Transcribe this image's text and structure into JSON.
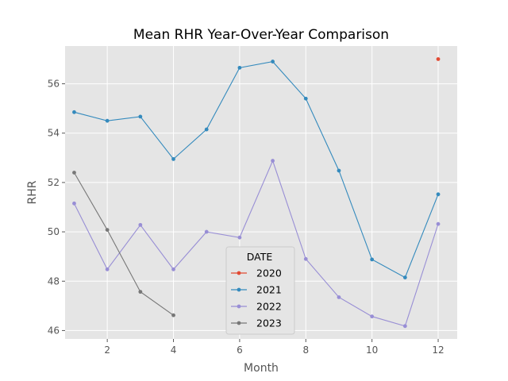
{
  "chart_data": {
    "type": "line",
    "title": "Mean RHR Year-Over-Year Comparison",
    "xlabel": "Month",
    "ylabel": "RHR",
    "xlim": [
      0.725,
      12.575
    ],
    "ylim": [
      45.66,
      57.53
    ],
    "x_ticks": [
      2,
      4,
      6,
      8,
      10,
      12
    ],
    "y_ticks": [
      46,
      48,
      50,
      52,
      54,
      56
    ],
    "grid": true,
    "style": "ggplot",
    "legend": {
      "title": "DATE",
      "placement": "lower center"
    },
    "series": [
      {
        "name": "2020",
        "color": "#E24A33",
        "x": [
          12
        ],
        "y": [
          57.0
        ]
      },
      {
        "name": "2021",
        "color": "#348ABD",
        "x": [
          1,
          2,
          3,
          4,
          5,
          6,
          7,
          8,
          9,
          10,
          11,
          12
        ],
        "y": [
          54.85,
          54.5,
          54.67,
          52.95,
          54.15,
          56.65,
          56.9,
          55.4,
          52.48,
          48.88,
          48.15,
          51.52
        ]
      },
      {
        "name": "2022",
        "color": "#988ED5",
        "x": [
          1,
          2,
          3,
          4,
          5,
          6,
          7,
          8,
          9,
          10,
          11,
          12
        ],
        "y": [
          51.15,
          48.48,
          50.28,
          48.48,
          50.0,
          49.77,
          52.88,
          48.9,
          47.35,
          46.57,
          46.18,
          50.32
        ]
      },
      {
        "name": "2023",
        "color": "#777777",
        "x": [
          1,
          2,
          3,
          4
        ],
        "y": [
          52.4,
          50.08,
          47.57,
          46.62
        ]
      }
    ]
  }
}
